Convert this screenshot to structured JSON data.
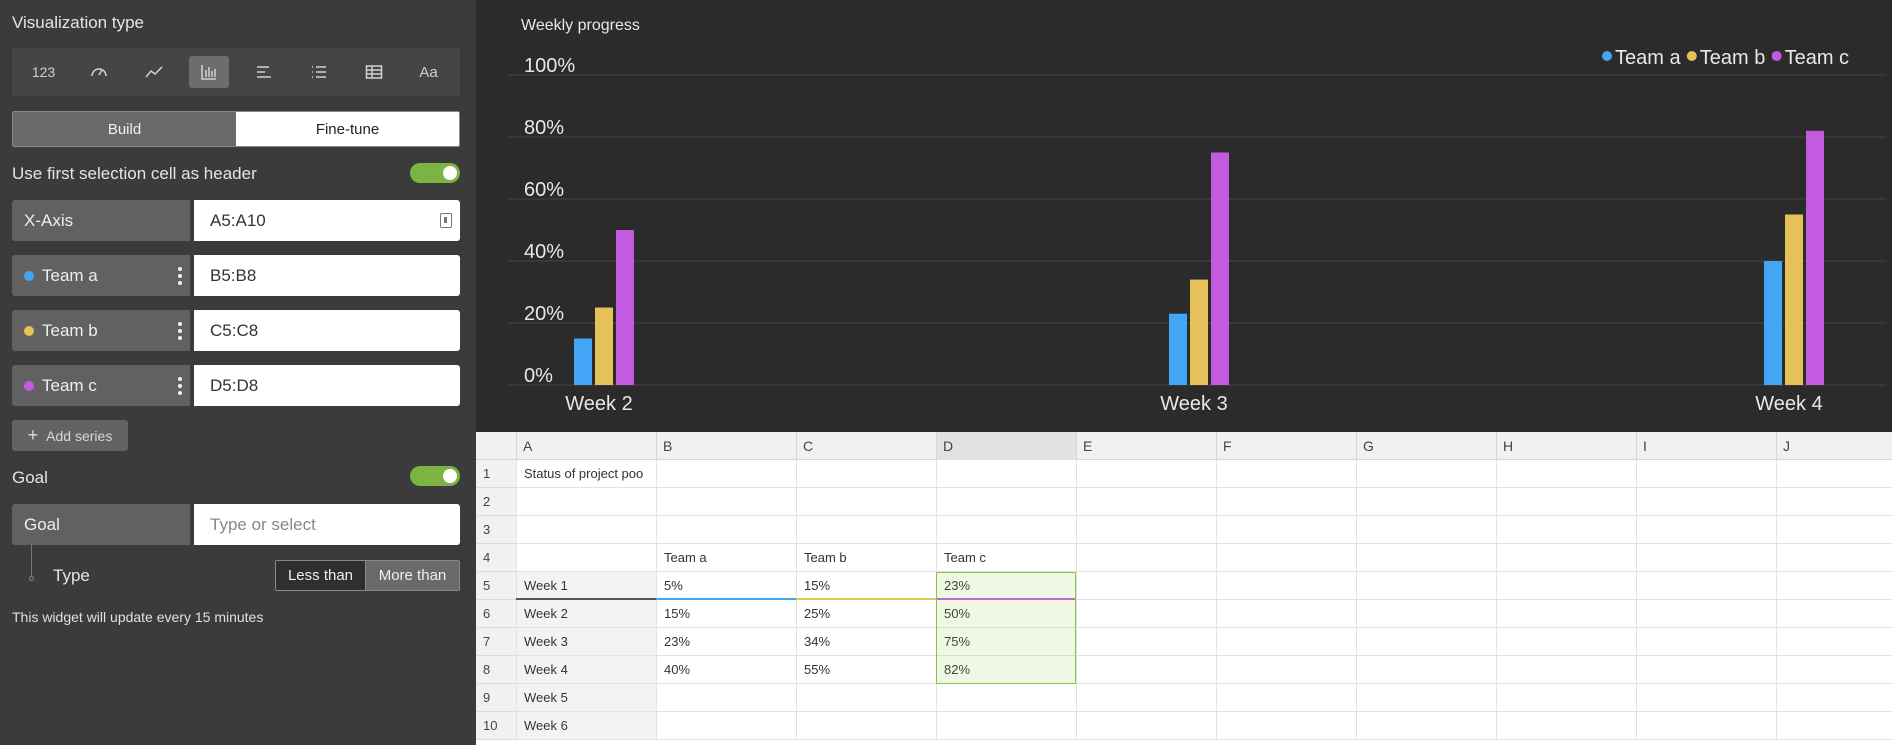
{
  "panel": {
    "viz_title": "Visualization type",
    "viz_types": [
      {
        "name": "number",
        "label": "123"
      },
      {
        "name": "gauge",
        "label": ""
      },
      {
        "name": "line",
        "label": ""
      },
      {
        "name": "bar",
        "label": "",
        "active": true
      },
      {
        "name": "horizontal-bar",
        "label": ""
      },
      {
        "name": "list",
        "label": ""
      },
      {
        "name": "table",
        "label": ""
      },
      {
        "name": "text",
        "label": "Aa"
      }
    ],
    "tabs": {
      "build": "Build",
      "finetune": "Fine-tune"
    },
    "header_toggle_label": "Use first selection cell as header",
    "xaxis": {
      "label": "X-Axis",
      "value": "A5:A10"
    },
    "series": [
      {
        "label": "Team a",
        "value": "B5:B8",
        "color": "#42a5f5"
      },
      {
        "label": "Team b",
        "value": "C5:C8",
        "color": "#e6c15a"
      },
      {
        "label": "Team c",
        "value": "D5:D8",
        "color": "#c25be0"
      }
    ],
    "add_series": "Add series",
    "goal_title": "Goal",
    "goal_field": {
      "label": "Goal",
      "placeholder": "Type or select"
    },
    "type_label": "Type",
    "type_options": {
      "less": "Less than",
      "more": "More than"
    },
    "update_note": "This widget will update every 15 minutes"
  },
  "chart_data": {
    "type": "bar",
    "title": "Weekly progress",
    "categories": [
      "Week 2",
      "Week 3",
      "Week 4"
    ],
    "series": [
      {
        "name": "Team a",
        "values": [
          15,
          23,
          40
        ],
        "color": "#42a5f5"
      },
      {
        "name": "Team b",
        "values": [
          25,
          34,
          55
        ],
        "color": "#e6c15a"
      },
      {
        "name": "Team c",
        "values": [
          50,
          75,
          82
        ],
        "color": "#c25be0"
      }
    ],
    "yticks": [
      "0%",
      "20%",
      "40%",
      "60%",
      "80%",
      "100%"
    ],
    "ylim": [
      0,
      100
    ],
    "grid": true,
    "legend": "top-right"
  },
  "sheet": {
    "columns": [
      "A",
      "B",
      "C",
      "D",
      "E",
      "F",
      "G",
      "H",
      "I",
      "J"
    ],
    "rows": [
      {
        "num": "1",
        "cells": [
          "Status of project poo",
          "",
          "",
          ""
        ]
      },
      {
        "num": "2",
        "cells": [
          "",
          "",
          "",
          ""
        ]
      },
      {
        "num": "3",
        "cells": [
          "",
          "",
          "",
          ""
        ]
      },
      {
        "num": "4",
        "cells": [
          "",
          "Team a",
          "Team b",
          "Team c"
        ]
      },
      {
        "num": "5",
        "cells": [
          "Week 1",
          "5%",
          "15%",
          "23%"
        ]
      },
      {
        "num": "6",
        "cells": [
          "Week 2",
          "15%",
          "25%",
          "50%"
        ]
      },
      {
        "num": "7",
        "cells": [
          "Week 3",
          "23%",
          "34%",
          "75%"
        ]
      },
      {
        "num": "8",
        "cells": [
          "Week 4",
          "40%",
          "55%",
          "82%"
        ]
      },
      {
        "num": "9",
        "cells": [
          "Week 5",
          "",
          "",
          ""
        ]
      },
      {
        "num": "10",
        "cells": [
          "Week 6",
          "",
          "",
          ""
        ]
      }
    ]
  }
}
